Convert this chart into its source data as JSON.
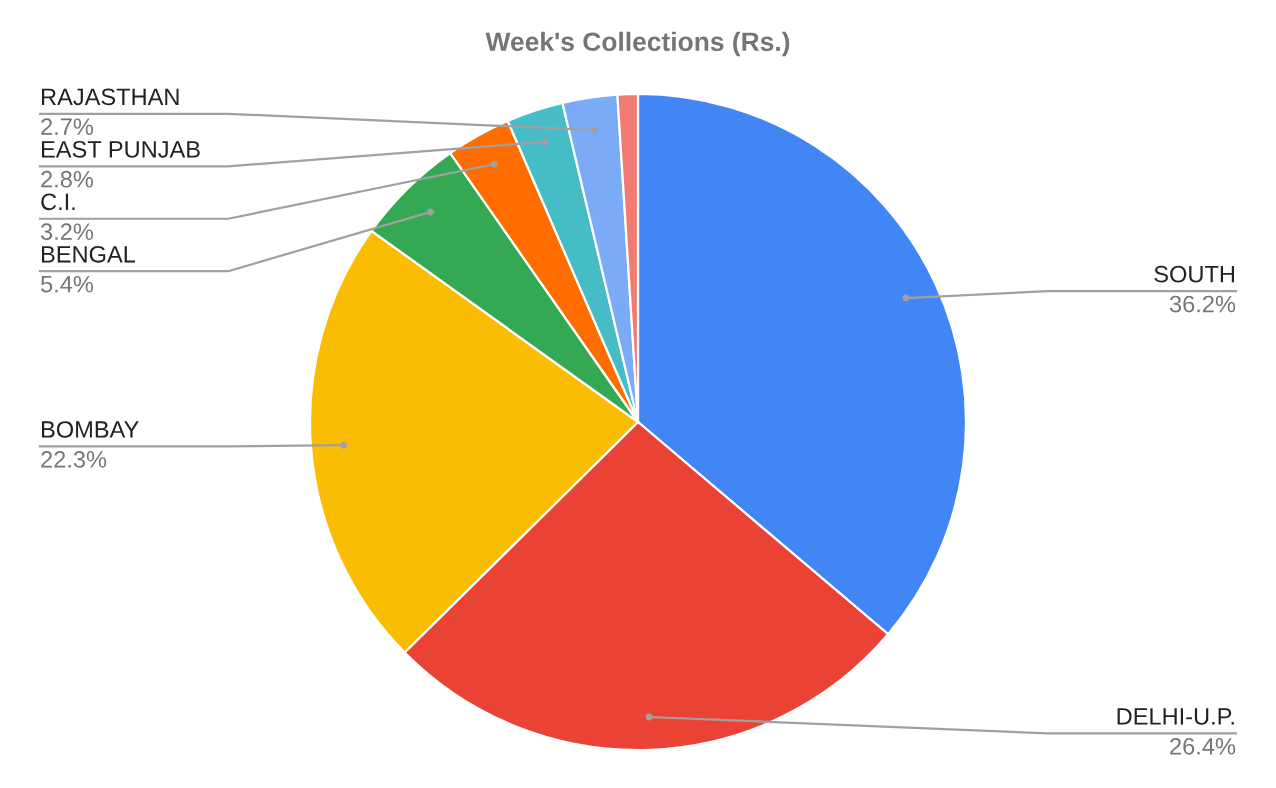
{
  "chart_data": {
    "type": "pie",
    "title": "Week's Collections (Rs.)",
    "categories": [
      "SOUTH",
      "DELHI-U.P.",
      "BOMBAY",
      "BENGAL",
      "C.I.",
      "EAST PUNJAB",
      "RAJASTHAN",
      null
    ],
    "values": [
      36.2,
      26.4,
      22.3,
      5.4,
      3.2,
      2.8,
      2.7,
      1.0
    ],
    "value_labels": [
      "36.2%",
      "26.4%",
      "22.3%",
      "5.4%",
      "3.2%",
      "2.8%",
      "2.7%",
      null
    ],
    "colors": [
      "#4285f4",
      "#ea4335",
      "#fbbc04",
      "#34a853",
      "#ff6d01",
      "#46bdc6",
      "#7baaf7",
      "#f07b72"
    ]
  }
}
